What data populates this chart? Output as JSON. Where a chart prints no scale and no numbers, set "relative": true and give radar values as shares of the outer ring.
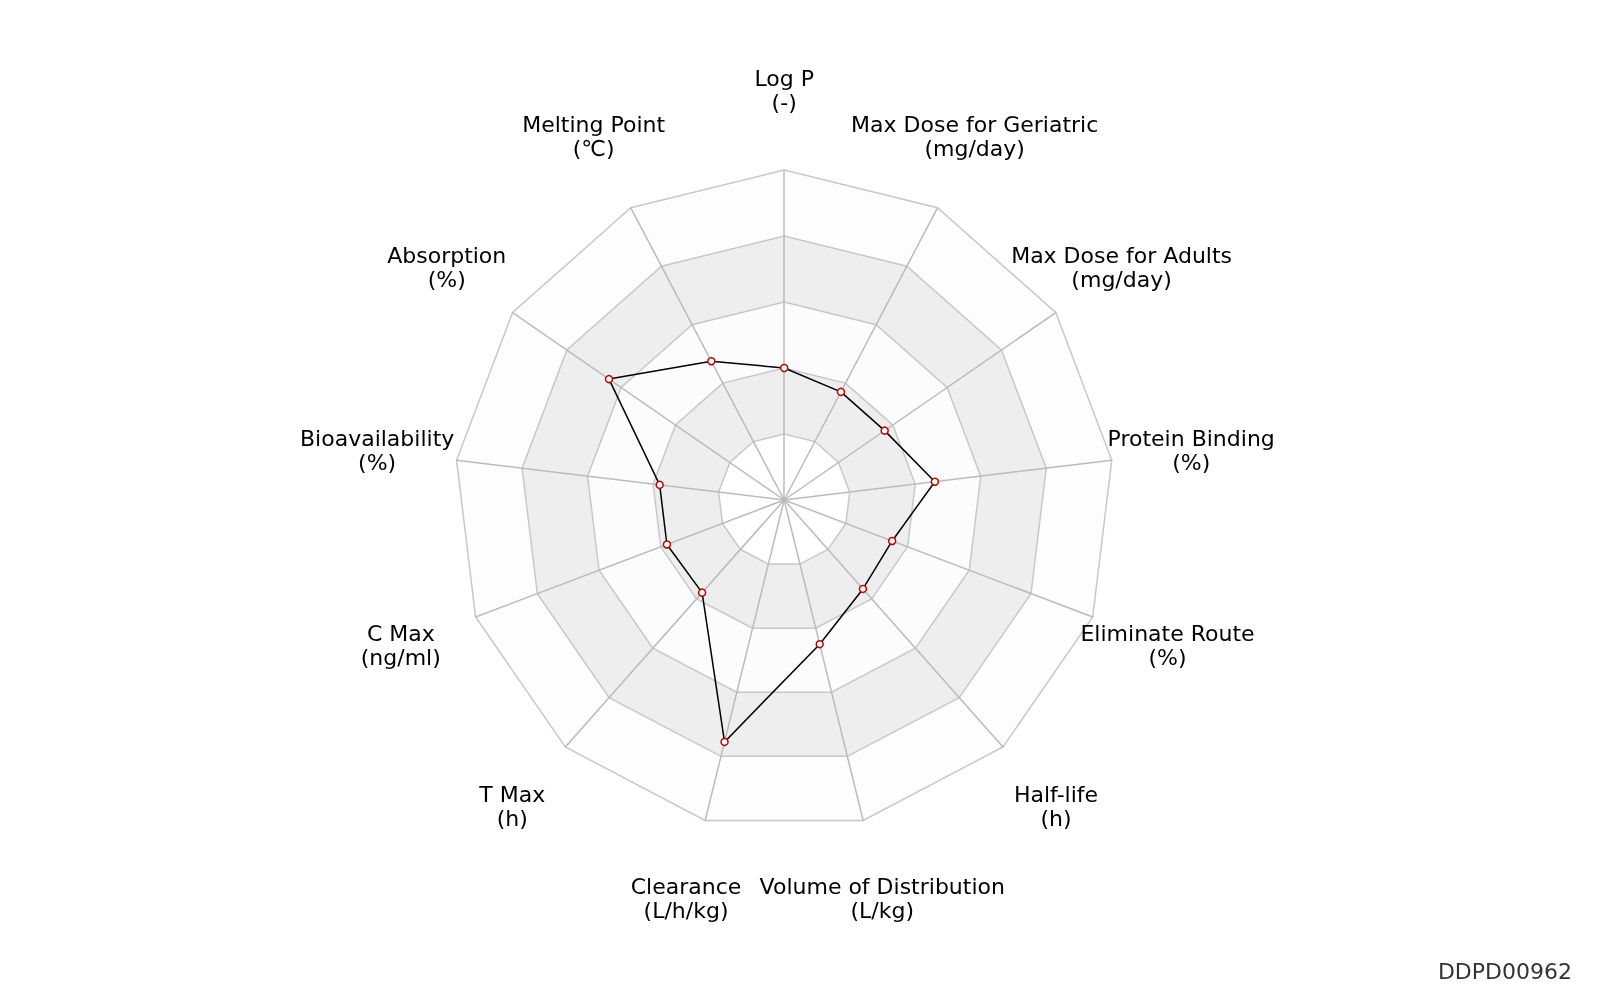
{
  "chart_data": {
    "type": "radar",
    "relative": true,
    "categories": [
      "Log P\n(-)",
      "Max Dose for Geriatric\n(mg/day)",
      "Max Dose for Adults\n(mg/day)",
      "Protein Binding\n(%)",
      "Eliminate Route\n(%)",
      "Half-life\n(h)",
      "Volume of Distribution\n(L/kg)",
      "Clearance\n(L/h/kg)",
      "T Max\n(h)",
      "C Max\n(ng/ml)",
      "Bioavailability\n(%)",
      "Absorption\n(%)",
      "Melting Point\n(℃)"
    ],
    "series": [
      {
        "color": "#000000",
        "values": [
          0.4,
          0.37,
          0.37,
          0.46,
          0.35,
          0.36,
          0.45,
          0.755,
          0.375,
          0.38,
          0.38,
          0.645,
          0.475
        ]
      }
    ],
    "marker": "circle",
    "annotations": [
      "DDPD00962"
    ]
  }
}
